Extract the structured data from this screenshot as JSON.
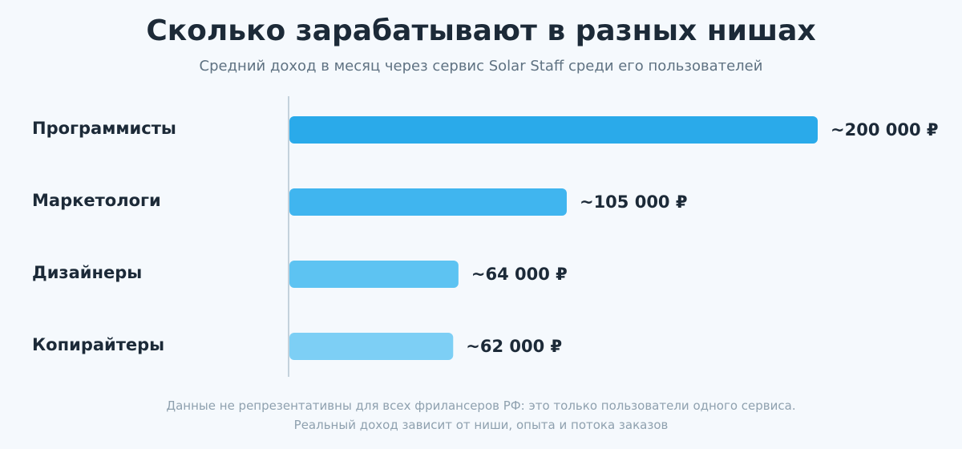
{
  "header": {
    "title": "Сколько зарабатывают в разных нишах",
    "subtitle": "Средний доход в месяц через сервис Solar Staff среди его пользователей"
  },
  "chart_data": {
    "type": "bar",
    "orientation": "horizontal",
    "title": "Сколько зарабатывают в разных нишах",
    "subtitle": "Средний доход в месяц через сервис Solar Staff среди его пользователей",
    "xlabel": "",
    "ylabel": "",
    "unit": "₽",
    "xlim": [
      0,
      200000
    ],
    "grid": false,
    "categories": [
      "Программисты",
      "Маркетологи",
      "Дизайнеры",
      "Копирайтеры"
    ],
    "values": [
      200000,
      105000,
      64000,
      62000
    ],
    "value_labels": [
      "~200 000 ₽",
      "~105 000 ₽",
      "~64 000 ₽",
      "~62 000 ₽"
    ],
    "bar_colors": [
      "#2aaaea",
      "#40b5ef",
      "#5dc3f2",
      "#7dcff5"
    ]
  },
  "footer": {
    "line1": "Данные не репрезентативны для всех фрилансеров РФ: это только пользователи одного сервиса.",
    "line2": "Реальный доход зависит от ниши, опыта и потока заказов"
  }
}
